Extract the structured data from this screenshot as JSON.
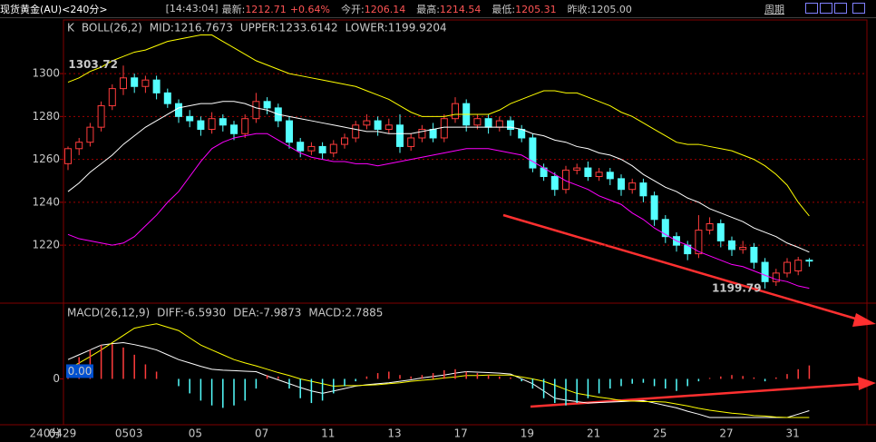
{
  "header": {
    "instrument": "现货黄金(AU)<240分>",
    "time": "[14:43:04]",
    "fields": [
      {
        "label": "最新:",
        "value": "1212.71",
        "change": "+0.64%"
      },
      {
        "label": "今开:",
        "value": "1206.14"
      },
      {
        "label": "最高:",
        "value": "1214.54"
      },
      {
        "label": "最低:",
        "value": "1205.31"
      },
      {
        "label": "昨收:",
        "value": "1205.00"
      }
    ],
    "period_button": "周期"
  },
  "chart_data": [
    {
      "type": "candlestick",
      "indicator": "K",
      "title": "BOLL(26,2)",
      "x_label": "240分",
      "up_color": "#ff3c3c",
      "down_color": "#54ffff",
      "ylim": [
        1193.4,
        1325
      ],
      "yticks": [
        1300,
        1280,
        1260,
        1240,
        1220
      ],
      "grid": true,
      "categories": [
        "0429",
        null,
        null,
        null,
        null,
        null,
        "0503",
        null,
        null,
        null,
        null,
        null,
        "05",
        null,
        null,
        null,
        null,
        null,
        "07",
        null,
        null,
        null,
        null,
        null,
        "11",
        null,
        null,
        null,
        null,
        null,
        "13",
        null,
        null,
        null,
        null,
        null,
        "17",
        null,
        null,
        null,
        null,
        null,
        "19",
        null,
        null,
        null,
        null,
        null,
        "21",
        null,
        null,
        null,
        null,
        null,
        "25",
        null,
        null,
        null,
        null,
        null,
        "27",
        null,
        null,
        null,
        null,
        null,
        "31",
        null
      ],
      "candles": [
        [
          1258,
          1266,
          1255,
          1265
        ],
        [
          1265,
          1270,
          1262,
          1268
        ],
        [
          1268,
          1277,
          1266,
          1275
        ],
        [
          1275,
          1287,
          1273,
          1285
        ],
        [
          1285,
          1295,
          1283,
          1293
        ],
        [
          1293,
          1303.72,
          1290,
          1298
        ],
        [
          1298,
          1300,
          1291,
          1294
        ],
        [
          1294,
          1299,
          1291,
          1297
        ],
        [
          1297,
          1299,
          1288,
          1291
        ],
        [
          1291,
          1293,
          1284,
          1286
        ],
        [
          1286,
          1288,
          1277,
          1280
        ],
        [
          1280,
          1283,
          1275,
          1278
        ],
        [
          1278,
          1280,
          1271,
          1274
        ],
        [
          1274,
          1282,
          1272,
          1279
        ],
        [
          1279,
          1281,
          1273,
          1276
        ],
        [
          1276,
          1278,
          1269,
          1272
        ],
        [
          1272,
          1281,
          1270,
          1279
        ],
        [
          1279,
          1291,
          1277,
          1287
        ],
        [
          1287,
          1289,
          1281,
          1284
        ],
        [
          1284,
          1286,
          1275,
          1278
        ],
        [
          1278,
          1280,
          1265,
          1268
        ],
        [
          1268,
          1270,
          1261,
          1264
        ],
        [
          1264,
          1268,
          1262,
          1266
        ],
        [
          1266,
          1268,
          1260,
          1263
        ],
        [
          1263,
          1269,
          1261,
          1267
        ],
        [
          1267,
          1272,
          1265,
          1270
        ],
        [
          1270,
          1278,
          1268,
          1276
        ],
        [
          1276,
          1281,
          1274,
          1278
        ],
        [
          1278,
          1280,
          1271,
          1274
        ],
        [
          1274,
          1279,
          1272,
          1276
        ],
        [
          1276,
          1281,
          1263,
          1266
        ],
        [
          1266,
          1272,
          1264,
          1270
        ],
        [
          1270,
          1276,
          1268,
          1274
        ],
        [
          1274,
          1277,
          1268,
          1270
        ],
        [
          1270,
          1281,
          1268,
          1279
        ],
        [
          1279,
          1289,
          1277,
          1286
        ],
        [
          1286,
          1288,
          1273,
          1276
        ],
        [
          1276,
          1281,
          1274,
          1279
        ],
        [
          1279,
          1281,
          1272,
          1275
        ],
        [
          1275,
          1280,
          1273,
          1278
        ],
        [
          1278,
          1280,
          1271,
          1274
        ],
        [
          1274,
          1276,
          1268,
          1270
        ],
        [
          1270,
          1272,
          1254,
          1256
        ],
        [
          1256,
          1258,
          1250,
          1252
        ],
        [
          1252,
          1254,
          1243,
          1246
        ],
        [
          1246,
          1257,
          1244,
          1255
        ],
        [
          1255,
          1258,
          1253,
          1256
        ],
        [
          1256,
          1259,
          1250,
          1252
        ],
        [
          1252,
          1256,
          1250,
          1254
        ],
        [
          1254,
          1256,
          1248,
          1251
        ],
        [
          1251,
          1253,
          1243,
          1246
        ],
        [
          1246,
          1251,
          1244,
          1249
        ],
        [
          1249,
          1251,
          1240,
          1243
        ],
        [
          1243,
          1245,
          1229,
          1232
        ],
        [
          1232,
          1234,
          1221,
          1224
        ],
        [
          1224,
          1226,
          1217,
          1220
        ],
        [
          1220,
          1222,
          1213,
          1216
        ],
        [
          1216,
          1234,
          1214,
          1227
        ],
        [
          1227,
          1233,
          1225,
          1230
        ],
        [
          1230,
          1232,
          1219,
          1222
        ],
        [
          1222,
          1224,
          1215,
          1218
        ],
        [
          1218,
          1222,
          1216,
          1219
        ],
        [
          1219,
          1221,
          1209,
          1212
        ],
        [
          1212,
          1214,
          1199.79,
          1203
        ],
        [
          1203,
          1209,
          1201,
          1207
        ],
        [
          1207,
          1214,
          1205,
          1212
        ],
        [
          1208,
          1214.54,
          1206,
          1213
        ],
        [
          1213,
          1214,
          1210,
          1212.71
        ]
      ],
      "series": [
        {
          "name": "MID:1216.7673",
          "color": "#ffffff",
          "values": [
            1245,
            1249,
            1254,
            1258,
            1262,
            1267,
            1271,
            1275,
            1278,
            1281,
            1284,
            1285,
            1286,
            1286,
            1287,
            1287,
            1286,
            1284,
            1283,
            1281,
            1280,
            1279,
            1278,
            1277,
            1276,
            1275,
            1274,
            1273,
            1273,
            1272,
            1272,
            1272,
            1273,
            1274,
            1275,
            1275,
            1275,
            1275,
            1275,
            1275,
            1275,
            1274,
            1272,
            1271,
            1269,
            1268,
            1266,
            1265,
            1263,
            1262,
            1260,
            1257,
            1253,
            1250,
            1247,
            1245,
            1242,
            1240,
            1237,
            1235,
            1233,
            1231,
            1228,
            1226,
            1224,
            1221,
            1219,
            1216.7673
          ]
        },
        {
          "name": "UPPER:1233.6142",
          "color": "#ffff00",
          "values": [
            1296,
            1298,
            1301,
            1303,
            1306,
            1308,
            1310,
            1311,
            1313,
            1315,
            1316,
            1317,
            1318,
            1318,
            1315,
            1312,
            1309,
            1306,
            1304,
            1302,
            1300,
            1299,
            1298,
            1297,
            1296,
            1295,
            1294,
            1292,
            1290,
            1288,
            1285,
            1282,
            1280,
            1280,
            1280,
            1281,
            1281,
            1281,
            1281,
            1283,
            1286,
            1288,
            1290,
            1292,
            1292,
            1291,
            1291,
            1289,
            1287,
            1285,
            1282,
            1280,
            1277,
            1274,
            1271,
            1268,
            1267,
            1267,
            1266,
            1265,
            1264,
            1262,
            1260,
            1257,
            1253,
            1248,
            1240,
            1233.6142
          ]
        },
        {
          "name": "LOWER:1199.9204",
          "color": "#ff00ff",
          "values": [
            1225,
            1223,
            1222,
            1221,
            1220,
            1221,
            1224,
            1229,
            1234,
            1240,
            1245,
            1252,
            1259,
            1265,
            1268,
            1270,
            1271,
            1272,
            1272,
            1269,
            1266,
            1263,
            1261,
            1260,
            1259,
            1259,
            1258,
            1258,
            1257,
            1258,
            1259,
            1260,
            1261,
            1262,
            1263,
            1264,
            1265,
            1265,
            1265,
            1264,
            1263,
            1262,
            1259,
            1256,
            1253,
            1250,
            1248,
            1246,
            1243,
            1241,
            1239,
            1235,
            1232,
            1228,
            1225,
            1222,
            1220,
            1217,
            1215,
            1213,
            1211,
            1210,
            1208,
            1206,
            1204,
            1203,
            1201,
            1199.9204
          ]
        }
      ]
    },
    {
      "type": "macd",
      "title": "MACD(26,12,9)",
      "cursor_label": "0.00",
      "ylim": [
        -9.5,
        15.5
      ],
      "yticks": [
        0
      ],
      "series": [
        {
          "name": "DIFF:-6.5930",
          "color": "#ffffff",
          "values": [
            4,
            5,
            6,
            7,
            7.3,
            7.5,
            7.1,
            6.6,
            6,
            5,
            4,
            3.3,
            2.6,
            2,
            1.8,
            1.7,
            1.6,
            1.5,
            0.6,
            -0.2,
            -1,
            -1.8,
            -2.5,
            -3,
            -2.5,
            -2,
            -1.5,
            -1.2,
            -1,
            -0.8,
            -0.5,
            -0.2,
            0.2,
            0.5,
            0.8,
            1.2,
            1.5,
            1.4,
            1.3,
            1.2,
            1,
            0,
            -1,
            -2.5,
            -4,
            -4.4,
            -4.7,
            -5,
            -4.9,
            -4.8,
            -4.7,
            -4.6,
            -4.5,
            -5,
            -5.5,
            -6,
            -6.7,
            -7.3,
            -8,
            -8,
            -8,
            -8,
            -8,
            -8,
            -8,
            -8,
            -7.3,
            -6.593
          ]
        },
        {
          "name": "DEA:-7.9873",
          "color": "#ffff00",
          "values": [
            2,
            3.3,
            4.6,
            6,
            7.5,
            9,
            10.5,
            11,
            11.4,
            10.7,
            10,
            8.5,
            7,
            6,
            5,
            4,
            3.3,
            2.7,
            2,
            1.3,
            0.7,
            0,
            -0.5,
            -1,
            -1.5,
            -1.4,
            -1.4,
            -1.3,
            -1.2,
            -1,
            -0.8,
            -0.5,
            -0.3,
            -0.1,
            0.2,
            0.4,
            0.7,
            0.7,
            0.8,
            0.8,
            0.8,
            0.4,
            0,
            -0.5,
            -1.3,
            -2.2,
            -3,
            -3.4,
            -3.8,
            -4.1,
            -4.5,
            -4.6,
            -4.7,
            -4.7,
            -4.8,
            -5.2,
            -5.6,
            -6.1,
            -6.5,
            -6.8,
            -7.1,
            -7.3,
            -7.6,
            -7.7,
            -7.9,
            -8,
            -8,
            -7.9873
          ]
        },
        {
          "name": "MACD:2.7885",
          "color": "#ff3c3c",
          "negative_color": "#54ffff",
          "histogram": true,
          "values": [
            3,
            4.5,
            6,
            7,
            7.2,
            6.5,
            5,
            3,
            1.5,
            0,
            -1.5,
            -3,
            -4.5,
            -5.5,
            -6,
            -5.5,
            -4.5,
            -2,
            0.8,
            0.5,
            -2,
            -4,
            -5,
            -4.5,
            -3,
            -1.5,
            -0.5,
            0.5,
            1.2,
            1.5,
            0.8,
            0.5,
            0.8,
            1.2,
            1.8,
            2,
            1.5,
            1.2,
            0.8,
            0.5,
            0.3,
            -0.5,
            -2,
            -4,
            -5,
            -5.5,
            -5,
            -4,
            -3,
            -2,
            -1.5,
            -1,
            -0.8,
            -1.5,
            -2,
            -2.5,
            -1.5,
            -0.5,
            0.2,
            0.5,
            0.8,
            0.6,
            0.3,
            -0.5,
            0.3,
            1,
            2,
            2.7885
          ]
        }
      ]
    }
  ]
}
